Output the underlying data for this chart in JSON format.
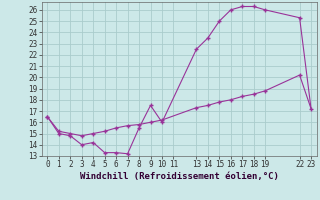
{
  "xlabel": "Windchill (Refroidissement éolien,°C)",
  "bg_color": "#cce8e8",
  "line_color": "#993399",
  "grid_color": "#aacccc",
  "xlim": [
    -0.5,
    23.5
  ],
  "ylim": [
    13,
    26.7
  ],
  "xticks": [
    0,
    1,
    2,
    3,
    4,
    5,
    6,
    7,
    8,
    9,
    10,
    11,
    13,
    14,
    15,
    16,
    17,
    18,
    19,
    22,
    23
  ],
  "yticks": [
    13,
    14,
    15,
    16,
    17,
    18,
    19,
    20,
    21,
    22,
    23,
    24,
    25,
    26
  ],
  "line1_x": [
    0,
    1,
    2,
    3,
    4,
    5,
    6,
    7,
    8,
    9,
    10,
    13,
    14,
    15,
    16,
    17,
    18,
    19,
    22
  ],
  "line1_y": [
    16.5,
    15.0,
    14.8,
    14.0,
    14.2,
    13.3,
    13.3,
    13.2,
    15.5,
    17.5,
    16.0,
    22.5,
    23.5,
    25.0,
    26.0,
    26.3,
    26.3,
    26.0,
    25.3
  ],
  "line2_x": [
    0,
    1,
    2,
    3,
    4,
    5,
    6,
    7,
    8,
    9,
    10,
    13,
    14,
    15,
    16,
    17,
    18,
    19,
    22,
    23
  ],
  "line2_y": [
    16.5,
    15.2,
    15.0,
    14.8,
    15.0,
    15.2,
    15.5,
    15.7,
    15.8,
    16.0,
    16.2,
    17.3,
    17.5,
    17.8,
    18.0,
    18.3,
    18.5,
    18.8,
    20.2,
    17.2
  ],
  "tick_fontsize": 5.5,
  "label_fontsize": 6.5
}
